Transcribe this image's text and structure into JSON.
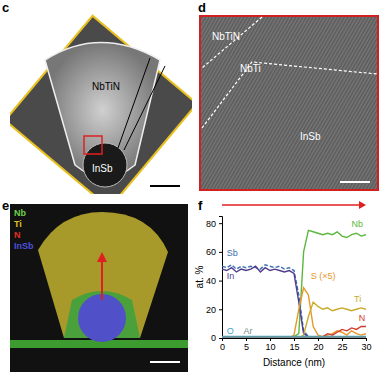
{
  "panels": {
    "c": {
      "label": "c",
      "texts": [
        "NbTiN",
        "InSb"
      ]
    },
    "d": {
      "label": "d",
      "texts": [
        "NbTiN",
        "NbTi",
        "InSb"
      ]
    },
    "e": {
      "label": "e",
      "legend": [
        {
          "name": "Nb",
          "color": "#6fd04a"
        },
        {
          "name": "Ti",
          "color": "#e0c020"
        },
        {
          "name": "N",
          "color": "#e03020"
        },
        {
          "name": "InSb",
          "color": "#4a50d8"
        }
      ]
    },
    "f": {
      "label": "f"
    }
  },
  "chart_data": {
    "type": "line",
    "x_label": "Distance (nm)",
    "y_label": "at. %",
    "x": [
      0,
      1,
      2,
      3,
      4,
      5,
      6,
      7,
      8,
      9,
      10,
      11,
      12,
      13,
      14,
      15,
      16,
      17,
      18,
      19,
      20,
      21,
      22,
      23,
      24,
      25,
      26,
      27,
      28,
      29,
      30
    ],
    "series": [
      {
        "name": "Nb",
        "color": "#5cb83c",
        "line_style": "solid",
        "values": [
          0,
          0,
          0,
          0,
          0,
          0,
          0,
          0,
          0,
          0,
          0,
          0,
          0,
          0,
          0,
          1,
          3,
          60,
          75,
          74,
          73,
          72,
          73,
          72,
          74,
          71,
          70,
          72,
          73,
          71,
          72
        ]
      },
      {
        "name": "Sb",
        "color": "#3c6eb4",
        "line_style": "dashed",
        "values": [
          50,
          49,
          51,
          48,
          50,
          49,
          50,
          49,
          48,
          51,
          50,
          49,
          50,
          48,
          49,
          47,
          30,
          5,
          1,
          0,
          0,
          0,
          0,
          0,
          0,
          0,
          0,
          0,
          0,
          0,
          0
        ]
      },
      {
        "name": "In",
        "color": "#503c8c",
        "line_style": "solid",
        "values": [
          48,
          47,
          49,
          46,
          48,
          47,
          48,
          50,
          46,
          49,
          47,
          48,
          47,
          46,
          47,
          45,
          25,
          3,
          1,
          0,
          0,
          0,
          0,
          0,
          0,
          0,
          0,
          0,
          0,
          0,
          0
        ]
      },
      {
        "name": "S (×5)",
        "color": "#e8962a",
        "line_style": "solid",
        "values": [
          0,
          0,
          0,
          0,
          0,
          0,
          0,
          0,
          0,
          0,
          0,
          0,
          0,
          0,
          0,
          2,
          20,
          35,
          30,
          8,
          2,
          1,
          2,
          3,
          5,
          4,
          2,
          5,
          3,
          2,
          3
        ]
      },
      {
        "name": "Ti",
        "color": "#c8aa28",
        "line_style": "solid",
        "values": [
          0,
          0,
          0,
          0,
          0,
          0,
          0,
          0,
          0,
          0,
          0,
          0,
          0,
          0,
          0,
          0,
          0,
          2,
          15,
          25,
          22,
          20,
          21,
          19,
          20,
          21,
          20,
          19,
          20,
          21,
          20
        ]
      },
      {
        "name": "N",
        "color": "#d23c2c",
        "line_style": "solid",
        "values": [
          0,
          0,
          0,
          0,
          0,
          0,
          0,
          0,
          0,
          0,
          0,
          0,
          0,
          0,
          0,
          0,
          0,
          0,
          0,
          0,
          0,
          1,
          3,
          2,
          4,
          6,
          5,
          7,
          6,
          8,
          8
        ]
      },
      {
        "name": "O",
        "color": "#40a8d0",
        "line_style": "solid",
        "values": [
          1,
          1,
          1,
          1,
          1,
          1,
          1,
          1,
          1,
          1,
          1,
          1,
          1,
          1,
          1,
          1,
          1,
          1,
          1,
          1,
          1,
          1,
          1,
          1,
          1,
          1,
          1,
          1,
          1,
          1,
          1
        ]
      },
      {
        "name": "Ar",
        "color": "#7a8c8c",
        "line_style": "solid",
        "values": [
          0.5,
          0.5,
          0.5,
          0.5,
          0.5,
          0.5,
          0.5,
          0.5,
          0.5,
          0.5,
          0.5,
          0.5,
          0.5,
          0.5,
          0.5,
          0.5,
          0.5,
          0.5,
          0.5,
          0.5,
          0.5,
          0.5,
          0.5,
          0.5,
          0.5,
          0.5,
          0.5,
          0.5,
          0.5,
          0.5,
          0.5
        ]
      }
    ],
    "xlim": [
      0,
      30
    ],
    "xticks": [
      0,
      5,
      10,
      15,
      20,
      25,
      30
    ],
    "ylim": [
      0,
      85
    ],
    "yticks": [
      0,
      20,
      40,
      60,
      80
    ]
  }
}
